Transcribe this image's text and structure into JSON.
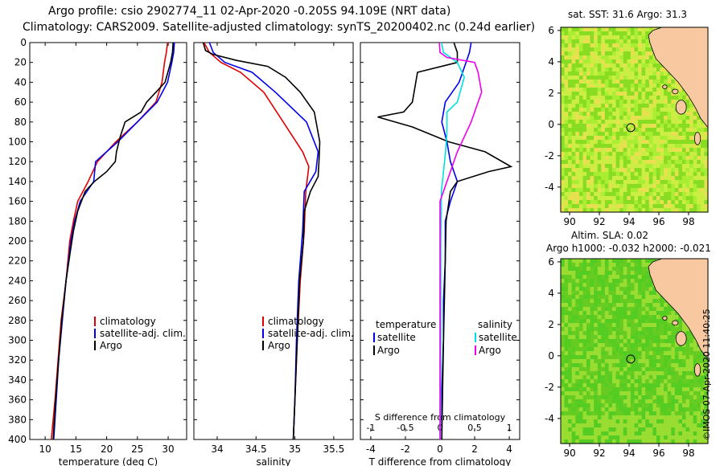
{
  "header": {
    "title_line1": "Argo profile: csio 2902774_11 02-Apr-2020 -0.205S 94.109E (NRT data)",
    "title_line2": "Climatology: CARS2009. Satellite-adjusted climatology: synTS_20200402.nc (0.24d earlier)"
  },
  "colors": {
    "climatology": "#e00000",
    "satellite": "#0000ee",
    "argo": "#000000",
    "satellite_salinity": "#00e0e0",
    "argo_salinity": "#ee00ee",
    "land": "#f8c8a0",
    "sea_green": "#66cc22",
    "sea_yellow": "#ccee44"
  },
  "chart_data": [
    {
      "type": "line",
      "name": "temperature",
      "xlabel": "temperature (deg C)",
      "ylabel": "",
      "xlim": [
        7.5,
        33
      ],
      "ylim": [
        400,
        0
      ],
      "xticks": [
        10,
        15,
        20,
        25,
        30
      ],
      "yticks": [
        0,
        20,
        40,
        60,
        80,
        100,
        120,
        140,
        160,
        180,
        200,
        220,
        240,
        260,
        280,
        300,
        320,
        340,
        360,
        380,
        400
      ],
      "legend": [
        "climatology",
        "satellite-adj. clim.",
        "Argo"
      ],
      "series": [
        {
          "name": "climatology",
          "color_key": "climatology",
          "points": [
            [
              29.9,
              0
            ],
            [
              29.7,
              10
            ],
            [
              29.4,
              20
            ],
            [
              29.0,
              40
            ],
            [
              28.0,
              60
            ],
            [
              25.0,
              80
            ],
            [
              21.5,
              100
            ],
            [
              18.5,
              120
            ],
            [
              17.0,
              140
            ],
            [
              15.3,
              160
            ],
            [
              14.6,
              180
            ],
            [
              14.0,
              200
            ],
            [
              13.4,
              240
            ],
            [
              12.6,
              280
            ],
            [
              12.1,
              320
            ],
            [
              11.6,
              360
            ],
            [
              11.0,
              400
            ]
          ]
        },
        {
          "name": "satellite-adj. clim.",
          "color_key": "satellite",
          "points": [
            [
              31.0,
              0
            ],
            [
              30.9,
              10
            ],
            [
              30.6,
              20
            ],
            [
              29.9,
              40
            ],
            [
              28.2,
              60
            ],
            [
              25.0,
              80
            ],
            [
              21.8,
              100
            ],
            [
              18.2,
              120
            ],
            [
              17.9,
              140
            ],
            [
              15.7,
              160
            ],
            [
              14.8,
              180
            ],
            [
              14.2,
              200
            ],
            [
              13.4,
              240
            ],
            [
              12.8,
              280
            ],
            [
              12.2,
              320
            ],
            [
              11.8,
              360
            ],
            [
              11.4,
              400
            ]
          ]
        },
        {
          "name": "Argo",
          "color_key": "argo",
          "points": [
            [
              30.8,
              0
            ],
            [
              30.7,
              10
            ],
            [
              30.4,
              20
            ],
            [
              29.5,
              40
            ],
            [
              28.0,
              50
            ],
            [
              26.5,
              60
            ],
            [
              25.6,
              70
            ],
            [
              23.0,
              80
            ],
            [
              22.2,
              95
            ],
            [
              21.6,
              110
            ],
            [
              21.4,
              120
            ],
            [
              20.0,
              130
            ],
            [
              18.0,
              140
            ],
            [
              16.5,
              150
            ],
            [
              15.3,
              170
            ],
            [
              14.6,
              190
            ],
            [
              14.1,
              210
            ],
            [
              13.4,
              240
            ],
            [
              12.7,
              280
            ],
            [
              12.2,
              320
            ],
            [
              11.7,
              360
            ],
            [
              11.3,
              400
            ]
          ]
        }
      ]
    },
    {
      "type": "line",
      "name": "salinity",
      "xlabel": "salinity",
      "xlim": [
        33.7,
        35.75
      ],
      "ylim": [
        400,
        0
      ],
      "xticks": [
        34,
        34.5,
        35,
        35.5
      ],
      "xticklabels": [
        "34",
        "34.5",
        "35",
        "35.5"
      ],
      "legend": [
        "climatology",
        "satellite-adj. clim.",
        "Argo"
      ],
      "series": [
        {
          "name": "climatology",
          "color_key": "climatology",
          "points": [
            [
              33.83,
              0
            ],
            [
              33.9,
              10
            ],
            [
              34.05,
              20
            ],
            [
              34.3,
              30
            ],
            [
              34.6,
              50
            ],
            [
              34.85,
              80
            ],
            [
              35.1,
              110
            ],
            [
              35.18,
              125
            ],
            [
              35.14,
              150
            ],
            [
              35.12,
              190
            ],
            [
              35.07,
              240
            ],
            [
              35.03,
              300
            ],
            [
              35.0,
              360
            ],
            [
              34.98,
              400
            ]
          ]
        },
        {
          "name": "satellite-adj. clim.",
          "color_key": "satellite",
          "points": [
            [
              33.9,
              0
            ],
            [
              33.95,
              10
            ],
            [
              34.1,
              20
            ],
            [
              34.45,
              30
            ],
            [
              34.75,
              50
            ],
            [
              35.15,
              80
            ],
            [
              35.3,
              110
            ],
            [
              35.27,
              130
            ],
            [
              35.12,
              150
            ],
            [
              35.1,
              190
            ],
            [
              35.05,
              240
            ],
            [
              35.02,
              300
            ],
            [
              35.0,
              360
            ],
            [
              34.98,
              400
            ]
          ]
        },
        {
          "name": "Argo",
          "color_key": "argo",
          "points": [
            [
              33.82,
              0
            ],
            [
              33.85,
              8
            ],
            [
              33.95,
              12
            ],
            [
              34.25,
              18
            ],
            [
              34.65,
              24
            ],
            [
              34.88,
              35
            ],
            [
              35.07,
              50
            ],
            [
              35.25,
              70
            ],
            [
              35.32,
              100
            ],
            [
              35.31,
              120
            ],
            [
              35.3,
              135
            ],
            [
              35.2,
              150
            ],
            [
              35.12,
              170
            ],
            [
              35.11,
              200
            ],
            [
              35.06,
              240
            ],
            [
              35.03,
              300
            ],
            [
              35.0,
              360
            ],
            [
              34.98,
              400
            ]
          ]
        }
      ]
    },
    {
      "type": "line",
      "name": "difference",
      "xlabel": "T difference from climatology",
      "xlabel_top": "S difference from climatology",
      "xlim_T": [
        -4.6,
        4.6
      ],
      "xlim_S": [
        -1.15,
        1.15
      ],
      "ylim": [
        400,
        0
      ],
      "xticks_T": [
        -4,
        -2,
        0,
        2,
        4
      ],
      "xticks_S": [
        -1,
        -0.5,
        0,
        0.5,
        1
      ],
      "xticklabels_S": [
        "-1",
        "-0.5",
        "0",
        "0.5",
        "1"
      ],
      "legend": {
        "temperature_heading": "temperature",
        "salinity_heading": "salinity",
        "satellite": "satellite",
        "argo": "Argo"
      },
      "series": [
        {
          "name": "temperature satellite",
          "color_key": "satellite",
          "axis": "T",
          "points": [
            [
              1.8,
              0
            ],
            [
              1.7,
              10
            ],
            [
              1.5,
              20
            ],
            [
              1.1,
              40
            ],
            [
              0.3,
              60
            ],
            [
              0.1,
              80
            ],
            [
              0.4,
              100
            ],
            [
              0.6,
              120
            ],
            [
              1.0,
              140
            ],
            [
              0.6,
              160
            ],
            [
              0.3,
              180
            ],
            [
              0.3,
              220
            ],
            [
              0.2,
              260
            ],
            [
              0.2,
              300
            ],
            [
              0.1,
              350
            ],
            [
              0.1,
              400
            ]
          ]
        },
        {
          "name": "temperature Argo",
          "color_key": "argo",
          "axis": "T",
          "points": [
            [
              0.8,
              0
            ],
            [
              1.0,
              10
            ],
            [
              1.0,
              20
            ],
            [
              -1.3,
              30
            ],
            [
              -1.6,
              60
            ],
            [
              -2.1,
              70
            ],
            [
              -3.6,
              75
            ],
            [
              -1.6,
              85
            ],
            [
              0.5,
              100
            ],
            [
              2.6,
              110
            ],
            [
              4.1,
              125
            ],
            [
              2.8,
              130
            ],
            [
              1.0,
              140
            ],
            [
              0.6,
              150
            ],
            [
              0.35,
              180
            ],
            [
              0.3,
              220
            ],
            [
              0.25,
              260
            ],
            [
              0.2,
              300
            ],
            [
              0.15,
              350
            ],
            [
              0.1,
              400
            ]
          ]
        },
        {
          "name": "salinity satellite",
          "color_key": "satellite_salinity",
          "axis": "S",
          "points": [
            [
              0.02,
              0
            ],
            [
              0.05,
              10
            ],
            [
              0.25,
              20
            ],
            [
              0.35,
              35
            ],
            [
              0.25,
              60
            ],
            [
              0.1,
              70
            ],
            [
              0.1,
              90
            ],
            [
              0.08,
              110
            ],
            [
              0.05,
              130
            ],
            [
              0.02,
              150
            ],
            [
              0.01,
              200
            ],
            [
              0.01,
              300
            ],
            [
              0.0,
              400
            ]
          ]
        },
        {
          "name": "salinity Argo",
          "color_key": "argo_salinity",
          "axis": "S",
          "points": [
            [
              -0.01,
              0
            ],
            [
              0.0,
              10
            ],
            [
              0.1,
              15
            ],
            [
              0.5,
              20
            ],
            [
              0.55,
              30
            ],
            [
              0.6,
              50
            ],
            [
              0.55,
              60
            ],
            [
              0.45,
              80
            ],
            [
              0.25,
              110
            ],
            [
              0.1,
              140
            ],
            [
              0.0,
              160
            ],
            [
              0.0,
              200
            ],
            [
              0.0,
              260
            ],
            [
              0.0,
              320
            ],
            [
              0.0,
              400
            ]
          ]
        }
      ]
    },
    {
      "type": "heatmap",
      "name": "sst-map",
      "title": "sat. SST: 31.6  Argo: 31.3",
      "xticks": [
        90,
        92,
        94,
        96,
        98
      ],
      "yticks": [
        -4,
        -2,
        0,
        2,
        4,
        6
      ],
      "xlim": [
        89.4,
        99.3
      ],
      "ylim": [
        -5.6,
        6.2
      ],
      "argo_position": [
        94.109,
        -0.205
      ]
    },
    {
      "type": "heatmap",
      "name": "sla-map",
      "title_line1": "Altim. SLA: 0.02",
      "title_line2": "Argo h1000: -0.032 h2000: -0.021",
      "xticks": [
        90,
        92,
        94,
        96,
        98
      ],
      "yticks": [
        -4,
        -2,
        0,
        2,
        4,
        6
      ],
      "xlim": [
        89.4,
        99.3
      ],
      "ylim": [
        -5.6,
        6.2
      ],
      "argo_position": [
        94.109,
        -0.205
      ]
    }
  ],
  "watermark": "©IMOS 07-Apr-2020 11:40:25"
}
